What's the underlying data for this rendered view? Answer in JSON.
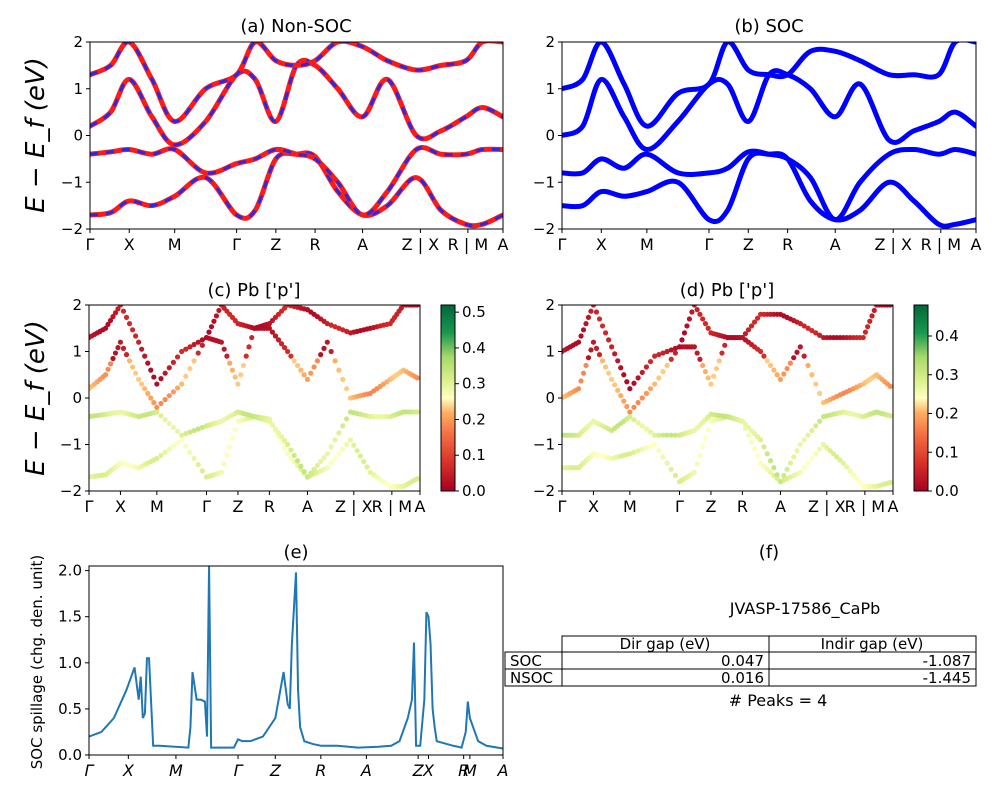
{
  "panels": {
    "a": {
      "title": "(a) Non-SOC"
    },
    "b": {
      "title": "(b) SOC"
    },
    "c": {
      "title": "(c)  Pb ['p']"
    },
    "d": {
      "title": "(d) Pb ['p']"
    },
    "e": {
      "title": "(e)"
    },
    "f": {
      "title": "(f)"
    }
  },
  "ylabel_band": "E − E_f (eV)",
  "kpath_labels": [
    "Γ",
    "X",
    "M",
    "Γ",
    "Z",
    "R",
    "A",
    "Z | X",
    "R | M",
    "A"
  ],
  "kpath_labels_proj": [
    "Γ",
    "X",
    "M",
    "Γ",
    "Z",
    "R",
    "A",
    "Z | X",
    "R | M",
    "A"
  ],
  "kpath_labels_spillage": [
    "Γ",
    "X",
    "M",
    "Γ",
    "Z",
    "R",
    "A",
    "Z",
    "X",
    "R",
    "M",
    "A"
  ],
  "band_yticks": [
    "2",
    "1",
    "0",
    "−1",
    "−2"
  ],
  "colorbar_c_ticks": [
    "0.5",
    "0.4",
    "0.3",
    "0.2",
    "0.1",
    "0.0"
  ],
  "colorbar_d_ticks": [
    "0.4",
    "0.3",
    "0.2",
    "0.1",
    "0.0"
  ],
  "spillage_ylabel": "SOC spillage (chg. den. unit)",
  "spillage_yticks": [
    "2.0",
    "1.5",
    "1.0",
    "0.5",
    "0.0"
  ],
  "info": {
    "material": "JVASP-17586_CaPb",
    "headers": [
      "",
      "Dir gap (eV)",
      "Indir gap (eV)"
    ],
    "rows": [
      {
        "label": "SOC",
        "dir": "0.047",
        "indir": "-1.087"
      },
      {
        "label": "NSOC",
        "dir": "0.016",
        "indir": "-1.445"
      }
    ],
    "peaks": "# Peaks = 4"
  },
  "colors": {
    "nonsoc_band": "#ff1a1a",
    "nonsoc_dash": "#2a2ae0",
    "soc_band": "#0000ff",
    "spillage": "#1f77b4"
  },
  "chart_data": [
    {
      "type": "line",
      "panel": "a",
      "title": "(a) Non-SOC",
      "ylabel": "E − E_f (eV)",
      "ylim": [
        -2,
        2
      ],
      "xlim": [
        0,
        1
      ],
      "xticks": [
        0,
        0.095,
        0.205,
        0.355,
        0.45,
        0.545,
        0.66,
        0.79,
        0.91,
        1.0
      ],
      "xticklabels": [
        "Γ",
        "X",
        "M",
        "Γ",
        "Z",
        "R",
        "A",
        "Z | X",
        "R | M",
        "A"
      ],
      "series": [
        {
          "name": "band1",
          "x": [
            0,
            0.05,
            0.095,
            0.15,
            0.205,
            0.28,
            0.355,
            0.4,
            0.45,
            0.5,
            0.545,
            0.6,
            0.66,
            0.72,
            0.79,
            0.85,
            0.91,
            0.95,
            1.0
          ],
          "y": [
            -1.7,
            -1.65,
            -1.4,
            -1.5,
            -1.3,
            -0.9,
            -1.7,
            -1.6,
            -0.5,
            -0.4,
            -0.45,
            -1.2,
            -1.7,
            -1.5,
            -0.9,
            -1.6,
            -1.9,
            -1.9,
            -1.7
          ]
        },
        {
          "name": "band2",
          "x": [
            0,
            0.05,
            0.095,
            0.15,
            0.205,
            0.28,
            0.355,
            0.4,
            0.45,
            0.5,
            0.545,
            0.6,
            0.66,
            0.72,
            0.79,
            0.85,
            0.91,
            0.95,
            1.0
          ],
          "y": [
            -0.4,
            -0.35,
            -0.3,
            -0.4,
            -0.3,
            -0.8,
            -0.6,
            -0.5,
            -0.3,
            -0.4,
            -0.5,
            -1.0,
            -1.7,
            -1.2,
            -0.3,
            -0.4,
            -0.4,
            -0.3,
            -0.3
          ]
        },
        {
          "name": "band3",
          "x": [
            0,
            0.05,
            0.095,
            0.15,
            0.205,
            0.28,
            0.355,
            0.4,
            0.45,
            0.5,
            0.545,
            0.6,
            0.66,
            0.72,
            0.79,
            0.85,
            0.91,
            0.95,
            1.0
          ],
          "y": [
            0.2,
            0.5,
            1.2,
            0.4,
            -0.2,
            0.3,
            1.3,
            1.2,
            0.3,
            1.5,
            1.5,
            1.0,
            0.4,
            1.2,
            0.0,
            0.1,
            0.4,
            0.6,
            0.4
          ]
        },
        {
          "name": "band4",
          "x": [
            0,
            0.05,
            0.095,
            0.15,
            0.205,
            0.28,
            0.355,
            0.4,
            0.45,
            0.5,
            0.545,
            0.6,
            0.66,
            0.72,
            0.79,
            0.85,
            0.91,
            0.95,
            1.0
          ],
          "y": [
            1.3,
            1.5,
            2.0,
            1.2,
            0.3,
            1.0,
            1.3,
            2.0,
            1.6,
            1.5,
            1.6,
            2.0,
            1.9,
            1.6,
            1.4,
            1.5,
            1.6,
            2.0,
            2.0
          ]
        }
      ]
    },
    {
      "type": "line",
      "panel": "b",
      "title": "(b) SOC",
      "ylabel": "",
      "ylim": [
        -2,
        2
      ],
      "xlim": [
        0,
        1
      ],
      "xticks": [
        0,
        0.095,
        0.205,
        0.355,
        0.45,
        0.545,
        0.66,
        0.79,
        0.91,
        1.0
      ],
      "xticklabels": [
        "Γ",
        "X",
        "M",
        "Γ",
        "Z",
        "R",
        "A",
        "Z | X",
        "R | M",
        "A"
      ],
      "series": [
        {
          "name": "band1",
          "x": [
            0,
            0.05,
            0.095,
            0.15,
            0.205,
            0.28,
            0.355,
            0.4,
            0.45,
            0.5,
            0.545,
            0.6,
            0.66,
            0.72,
            0.79,
            0.85,
            0.91,
            0.95,
            1.0
          ],
          "y": [
            -1.5,
            -1.5,
            -1.2,
            -1.3,
            -1.2,
            -1.0,
            -1.8,
            -1.6,
            -0.5,
            -0.4,
            -0.5,
            -1.4,
            -1.8,
            -1.6,
            -1.0,
            -1.4,
            -1.9,
            -1.9,
            -1.8
          ]
        },
        {
          "name": "band2",
          "x": [
            0,
            0.05,
            0.095,
            0.15,
            0.205,
            0.28,
            0.355,
            0.4,
            0.45,
            0.5,
            0.545,
            0.6,
            0.66,
            0.72,
            0.79,
            0.85,
            0.91,
            0.95,
            1.0
          ],
          "y": [
            -0.8,
            -0.8,
            -0.5,
            -0.7,
            -0.4,
            -0.8,
            -0.8,
            -0.7,
            -0.35,
            -0.4,
            -0.5,
            -0.9,
            -1.8,
            -1.0,
            -0.4,
            -0.3,
            -0.4,
            -0.3,
            -0.4
          ]
        },
        {
          "name": "band3",
          "x": [
            0,
            0.05,
            0.095,
            0.15,
            0.205,
            0.28,
            0.355,
            0.4,
            0.45,
            0.5,
            0.545,
            0.6,
            0.66,
            0.72,
            0.79,
            0.85,
            0.91,
            0.95,
            1.0
          ],
          "y": [
            0.0,
            0.2,
            1.2,
            0.4,
            -0.3,
            0.3,
            1.1,
            1.1,
            0.3,
            1.3,
            1.3,
            1.0,
            0.4,
            1.1,
            -0.1,
            0.1,
            0.3,
            0.5,
            0.2
          ]
        },
        {
          "name": "band4",
          "x": [
            0,
            0.05,
            0.095,
            0.15,
            0.205,
            0.28,
            0.355,
            0.4,
            0.45,
            0.5,
            0.545,
            0.6,
            0.66,
            0.72,
            0.79,
            0.85,
            0.91,
            0.95,
            1.0
          ],
          "y": [
            1.0,
            1.2,
            2.0,
            1.1,
            0.2,
            0.9,
            1.1,
            2.0,
            1.4,
            1.3,
            1.3,
            1.8,
            1.8,
            1.6,
            1.3,
            1.3,
            1.3,
            2.0,
            2.0
          ]
        }
      ]
    },
    {
      "type": "scatter",
      "panel": "c",
      "title": "(c)  Pb ['p']",
      "ylim": [
        -2,
        2
      ],
      "colorbar_range": [
        0.0,
        0.52
      ],
      "colormap": "RdYlGn",
      "xticklabels": [
        "Γ",
        "X",
        "M",
        "Γ",
        "Z",
        "R",
        "A",
        "Z | X",
        "R | M",
        "A"
      ]
    },
    {
      "type": "scatter",
      "panel": "d",
      "title": "(d) Pb ['p']",
      "ylim": [
        -2,
        2
      ],
      "colorbar_range": [
        0.0,
        0.48
      ],
      "colormap": "RdYlGn",
      "xticklabels": [
        "Γ",
        "X",
        "M",
        "Γ",
        "Z",
        "R",
        "A",
        "Z | X",
        "R | M",
        "A"
      ]
    },
    {
      "type": "line",
      "panel": "e",
      "title": "(e)",
      "ylabel": "SOC spillage (chg. den. unit)",
      "ylim": [
        0,
        2.05
      ],
      "xlim": [
        0,
        1
      ],
      "series": [
        {
          "name": "spillage",
          "x": [
            0,
            0.03,
            0.06,
            0.09,
            0.11,
            0.12,
            0.125,
            0.13,
            0.135,
            0.14,
            0.145,
            0.155,
            0.165,
            0.17,
            0.24,
            0.245,
            0.25,
            0.26,
            0.27,
            0.28,
            0.285,
            0.29,
            0.295,
            0.3,
            0.305,
            0.31,
            0.35,
            0.36,
            0.37,
            0.39,
            0.42,
            0.45,
            0.47,
            0.48,
            0.485,
            0.49,
            0.5,
            0.505,
            0.51,
            0.52,
            0.54,
            0.56,
            0.6,
            0.65,
            0.7,
            0.73,
            0.75,
            0.77,
            0.78,
            0.785,
            0.79,
            0.8,
            0.81,
            0.815,
            0.82,
            0.825,
            0.83,
            0.835,
            0.84,
            0.88,
            0.9,
            0.91,
            0.915,
            0.92,
            0.94,
            0.96,
            1.0
          ],
          "y": [
            0.2,
            0.25,
            0.4,
            0.7,
            0.95,
            0.6,
            0.85,
            0.4,
            0.45,
            1.05,
            1.05,
            0.1,
            0.1,
            0.1,
            0.08,
            0.3,
            0.9,
            0.6,
            0.6,
            0.58,
            0.2,
            2.05,
            0.08,
            0.08,
            0.08,
            0.08,
            0.08,
            0.17,
            0.15,
            0.15,
            0.2,
            0.4,
            0.9,
            0.55,
            0.5,
            1.2,
            1.98,
            0.7,
            0.3,
            0.15,
            0.12,
            0.1,
            0.1,
            0.08,
            0.09,
            0.1,
            0.15,
            0.4,
            0.6,
            1.22,
            0.1,
            0.1,
            0.6,
            1.55,
            1.5,
            1.2,
            0.5,
            0.3,
            0.15,
            0.1,
            0.08,
            0.25,
            0.58,
            0.4,
            0.15,
            0.1,
            0.07
          ]
        }
      ]
    }
  ]
}
